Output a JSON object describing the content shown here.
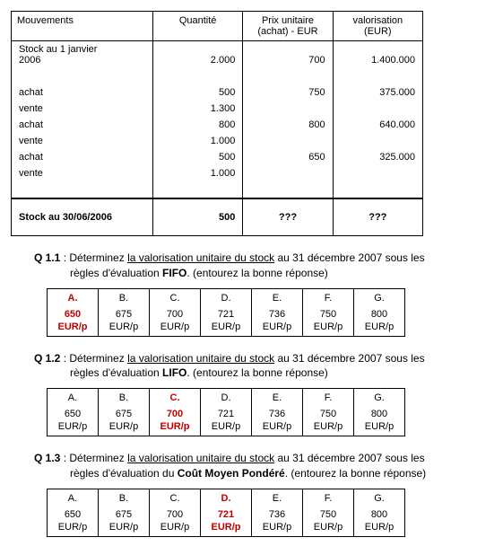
{
  "stock_table": {
    "headers": {
      "col1": "Mouvements",
      "col2": "Quantité",
      "col3_line1": "Prix unitaire",
      "col3_line2": "(achat) - EUR",
      "col4_line1": "valorisation",
      "col4_line2": "(EUR)"
    },
    "opening_label_l1": "Stock au 1 janvier",
    "opening_label_l2": "2006",
    "opening_qty": "2.000",
    "opening_price": "700",
    "opening_val": "1.400.000",
    "rows": [
      {
        "label": "achat",
        "qty": "500",
        "price": "750",
        "val": "375.000"
      },
      {
        "label": "vente",
        "qty": "1.300",
        "price": "",
        "val": ""
      },
      {
        "label": "achat",
        "qty": "800",
        "price": "800",
        "val": "640.000"
      },
      {
        "label": "vente",
        "qty": "1.000",
        "price": "",
        "val": ""
      },
      {
        "label": "achat",
        "qty": "500",
        "price": "650",
        "val": "325.000"
      },
      {
        "label": "vente",
        "qty": "1.000",
        "price": "",
        "val": ""
      }
    ],
    "total_label": "Stock au 30/06/2006",
    "total_qty": "500",
    "total_price": "???",
    "total_val": "???"
  },
  "q11": {
    "num": "Q 1.1",
    "text1": " : Déterminez ",
    "underline": "la valorisation unitaire du stock",
    "text2": " au 31 décembre 2007 sous les",
    "line2a": "règles d'évaluation ",
    "bold": "FIFO",
    "line2b": ". (entourez la bonne réponse)"
  },
  "q12": {
    "num": "Q 1.2",
    "text1": " : Déterminez ",
    "underline": "la valorisation unitaire du stock",
    "text2": " au 31 décembre 2007 sous les",
    "line2a": "règles d'évaluation ",
    "bold": "LIFO",
    "line2b": ". (entourez la bonne réponse)"
  },
  "q13": {
    "num": "Q 1.3",
    "text1": " : Déterminez ",
    "underline": "la valorisation unitaire du stock",
    "text2": " au 31 décembre 2007 sous les",
    "line2a": "règles d'évaluation du ",
    "bold": "Coût Moyen Pondéré",
    "line2b": ". (entourez la bonne réponse)"
  },
  "answers": {
    "letters": [
      "A.",
      "B.",
      "C.",
      "D.",
      "E.",
      "F.",
      "G."
    ],
    "values": [
      "650",
      "675",
      "700",
      "721",
      "736",
      "750",
      "800"
    ],
    "unit": "EUR/p",
    "q11_correct_index": 0,
    "q12_correct_index": 2,
    "q13_correct_index": 3
  }
}
